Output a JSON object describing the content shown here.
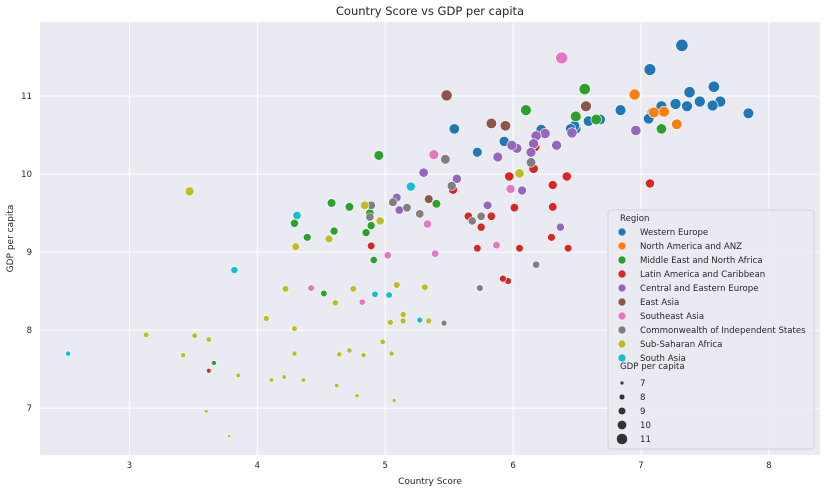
{
  "chart_data": {
    "type": "scatter",
    "title": "Country Score vs GDP per capita",
    "xlabel": "Country Score",
    "ylabel": "GDP per capita",
    "xlim": [
      2.3,
      8.4
    ],
    "ylim": [
      6.4,
      11.95
    ],
    "xticks": [
      3,
      4,
      5,
      6,
      7,
      8
    ],
    "yticks": [
      7,
      8,
      9,
      10,
      11
    ],
    "grid": true,
    "legend_position": "lower-right",
    "legend_title": "Region",
    "size_legend_title": "GDP per capita",
    "size_legend_values": [
      7,
      8,
      9,
      10,
      11
    ],
    "series": [
      {
        "name": "Western Europe",
        "color": "#1f77b4",
        "points": [
          [
            7.84,
            10.78
          ],
          [
            7.62,
            10.93
          ],
          [
            7.57,
            11.12
          ],
          [
            7.56,
            10.88
          ],
          [
            7.46,
            10.93
          ],
          [
            7.38,
            11.05
          ],
          [
            7.36,
            10.87
          ],
          [
            7.32,
            11.65
          ],
          [
            7.27,
            10.9
          ],
          [
            7.16,
            10.87
          ],
          [
            7.09,
            10.79
          ],
          [
            7.07,
            11.34
          ],
          [
            7.06,
            10.71
          ],
          [
            6.84,
            10.82
          ],
          [
            6.68,
            10.7
          ],
          [
            6.59,
            10.68
          ],
          [
            6.49,
            10.58
          ],
          [
            6.48,
            10.62
          ],
          [
            6.45,
            10.58
          ],
          [
            6.22,
            10.57
          ],
          [
            5.93,
            10.42
          ],
          [
            5.72,
            10.28
          ],
          [
            5.54,
            10.58
          ]
        ]
      },
      {
        "name": "North America and ANZ",
        "color": "#ff7f0e",
        "points": [
          [
            7.28,
            10.64
          ],
          [
            7.18,
            10.8
          ],
          [
            7.1,
            10.79
          ],
          [
            6.95,
            11.02
          ]
        ]
      },
      {
        "name": "Middle East and North Africa",
        "color": "#2ca02c",
        "points": [
          [
            7.16,
            10.58
          ],
          [
            6.65,
            10.7
          ],
          [
            6.56,
            11.09
          ],
          [
            6.49,
            10.74
          ],
          [
            6.1,
            10.82
          ],
          [
            5.4,
            9.62
          ],
          [
            4.95,
            10.24
          ],
          [
            4.89,
            9.34
          ],
          [
            4.88,
            9.5
          ],
          [
            4.85,
            9.25
          ],
          [
            4.72,
            9.58
          ],
          [
            4.6,
            9.27
          ],
          [
            4.58,
            9.63
          ],
          [
            4.39,
            9.19
          ],
          [
            4.29,
            9.37
          ],
          [
            4.52,
            8.47
          ],
          [
            4.91,
            8.9
          ],
          [
            3.66,
            7.58
          ]
        ]
      },
      {
        "name": "Latin America and Caribbean",
        "color": "#d62728",
        "points": [
          [
            7.07,
            9.88
          ],
          [
            6.42,
            9.97
          ],
          [
            6.31,
            9.86
          ],
          [
            6.17,
            10.35
          ],
          [
            6.31,
            9.58
          ],
          [
            6.16,
            10.07
          ],
          [
            6.01,
            9.57
          ],
          [
            5.97,
            9.97
          ],
          [
            5.53,
            9.8
          ],
          [
            5.65,
            9.46
          ],
          [
            5.83,
            9.46
          ],
          [
            5.75,
            9.32
          ],
          [
            6.3,
            9.19
          ],
          [
            6.43,
            9.05
          ],
          [
            6.05,
            9.05
          ],
          [
            5.72,
            9.05
          ],
          [
            5.96,
            8.63
          ],
          [
            5.92,
            8.66
          ],
          [
            4.89,
            9.08
          ],
          [
            3.62,
            7.48
          ]
        ]
      },
      {
        "name": "Central and Eastern Europe",
        "color": "#9467bd",
        "points": [
          [
            6.96,
            10.56
          ],
          [
            6.46,
            10.53
          ],
          [
            6.25,
            10.52
          ],
          [
            6.18,
            10.49
          ],
          [
            6.16,
            10.39
          ],
          [
            6.34,
            10.37
          ],
          [
            6.03,
            10.33
          ],
          [
            5.99,
            10.37
          ],
          [
            5.88,
            10.22
          ],
          [
            6.14,
            10.28
          ],
          [
            5.56,
            9.94
          ],
          [
            5.3,
            10.02
          ],
          [
            5.09,
            9.7
          ],
          [
            5.11,
            9.54
          ],
          [
            5.8,
            9.6
          ],
          [
            6.07,
            9.79
          ],
          [
            6.37,
            9.32
          ]
        ]
      },
      {
        "name": "East Asia",
        "color": "#8c564b",
        "points": [
          [
            6.57,
            10.87
          ],
          [
            5.48,
            11.01
          ],
          [
            5.83,
            10.65
          ],
          [
            5.94,
            10.62
          ],
          [
            5.34,
            9.68
          ]
        ]
      },
      {
        "name": "Southeast Asia",
        "color": "#e377c2",
        "points": [
          [
            6.38,
            11.49
          ],
          [
            5.38,
            10.25
          ],
          [
            5.98,
            9.81
          ],
          [
            5.33,
            9.36
          ],
          [
            5.02,
            8.96
          ],
          [
            5.39,
            8.98
          ],
          [
            5.87,
            9.09
          ],
          [
            4.42,
            8.54
          ],
          [
            4.82,
            8.36
          ]
        ]
      },
      {
        "name": "Commonwealth of Independent States",
        "color": "#7f7f7f",
        "points": [
          [
            6.14,
            10.15
          ],
          [
            5.47,
            10.19
          ],
          [
            5.52,
            9.85
          ],
          [
            5.06,
            9.64
          ],
          [
            5.17,
            9.57
          ],
          [
            5.27,
            9.49
          ],
          [
            5.68,
            9.4
          ],
          [
            5.75,
            9.46
          ],
          [
            4.88,
            9.45
          ],
          [
            4.89,
            9.6
          ],
          [
            5.74,
            8.54
          ],
          [
            6.18,
            8.84
          ],
          [
            5.46,
            8.09
          ]
        ]
      },
      {
        "name": "Sub-Saharan Africa",
        "color": "#bcbd22",
        "points": [
          [
            3.47,
            9.78
          ],
          [
            6.05,
            10.01
          ],
          [
            4.84,
            9.6
          ],
          [
            4.96,
            9.4
          ],
          [
            4.3,
            9.07
          ],
          [
            4.56,
            9.17
          ],
          [
            4.75,
            8.53
          ],
          [
            4.22,
            8.53
          ],
          [
            4.61,
            8.35
          ],
          [
            5.09,
            8.58
          ],
          [
            5.31,
            8.55
          ],
          [
            4.07,
            8.15
          ],
          [
            5.14,
            8.2
          ],
          [
            5.04,
            8.1
          ],
          [
            5.14,
            8.12
          ],
          [
            5.34,
            8.12
          ],
          [
            4.29,
            8.02
          ],
          [
            3.13,
            7.94
          ],
          [
            3.51,
            7.93
          ],
          [
            3.62,
            7.88
          ],
          [
            4.98,
            7.85
          ],
          [
            3.42,
            7.68
          ],
          [
            4.29,
            7.7
          ],
          [
            4.64,
            7.69
          ],
          [
            4.72,
            7.74
          ],
          [
            4.83,
            7.68
          ],
          [
            5.05,
            7.7
          ],
          [
            3.85,
            7.42
          ],
          [
            4.21,
            7.4
          ],
          [
            4.11,
            7.36
          ],
          [
            4.36,
            7.36
          ],
          [
            4.62,
            7.29
          ],
          [
            4.78,
            7.16
          ],
          [
            5.07,
            7.1
          ],
          [
            3.6,
            6.96
          ],
          [
            3.78,
            6.64
          ]
        ]
      },
      {
        "name": "South Asia",
        "color": "#17becf",
        "points": [
          [
            5.2,
            9.84
          ],
          [
            4.31,
            9.47
          ],
          [
            3.82,
            8.77
          ],
          [
            4.92,
            8.46
          ],
          [
            5.03,
            8.45
          ],
          [
            5.27,
            8.13
          ],
          [
            2.52,
            7.7
          ]
        ]
      }
    ]
  }
}
